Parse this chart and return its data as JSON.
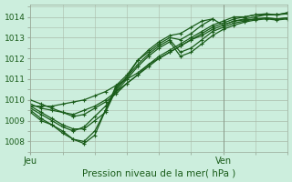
{
  "title": "Pression niveau de la mer( hPa )",
  "ylabel_ticks": [
    1008,
    1009,
    1010,
    1011,
    1012,
    1013,
    1014
  ],
  "ylim": [
    1007.6,
    1014.6
  ],
  "xlim": [
    0,
    48
  ],
  "background_color": "#cceedd",
  "grid_color": "#aabbaa",
  "line_color": "#1a5c1a",
  "marker_color": "#1a5c1a",
  "xtick_labels": [
    "Jeu",
    "Ven"
  ],
  "xtick_positions": [
    0,
    36
  ],
  "vline_x": 36,
  "series": [
    {
      "x": [
        0,
        2,
        4,
        6,
        8,
        10,
        12,
        14,
        16,
        18,
        20,
        22,
        24,
        26,
        28,
        30,
        32,
        34,
        36,
        38,
        40,
        42,
        44,
        46,
        48
      ],
      "y": [
        1009.7,
        1009.7,
        1009.7,
        1009.8,
        1009.9,
        1010.0,
        1010.2,
        1010.4,
        1010.7,
        1011.0,
        1011.3,
        1011.7,
        1012.0,
        1012.3,
        1012.6,
        1012.9,
        1013.1,
        1013.4,
        1013.6,
        1013.8,
        1013.9,
        1014.0,
        1014.1,
        1014.1,
        1014.2
      ]
    },
    {
      "x": [
        0,
        2,
        4,
        6,
        8,
        10,
        12,
        14,
        16,
        18,
        20,
        22,
        24,
        26,
        28,
        30,
        32,
        34,
        36,
        38,
        40,
        42,
        44,
        46,
        48
      ],
      "y": [
        1009.8,
        1009.6,
        1009.5,
        1009.4,
        1009.3,
        1009.5,
        1009.7,
        1010.0,
        1010.4,
        1010.8,
        1011.2,
        1011.6,
        1012.0,
        1012.3,
        1012.6,
        1012.9,
        1013.2,
        1013.5,
        1013.7,
        1013.9,
        1014.0,
        1014.1,
        1014.1,
        1014.1,
        1014.15
      ]
    },
    {
      "x": [
        0,
        2,
        4,
        6,
        8,
        10,
        12,
        14,
        16,
        18,
        20,
        22,
        24,
        26,
        28,
        30,
        32,
        34,
        36,
        38,
        40,
        42,
        44,
        46,
        48
      ],
      "y": [
        1010.0,
        1009.8,
        1009.6,
        1009.4,
        1009.2,
        1009.3,
        1009.6,
        1009.9,
        1010.3,
        1010.8,
        1011.2,
        1011.7,
        1012.1,
        1012.4,
        1012.7,
        1013.0,
        1013.3,
        1013.6,
        1013.8,
        1014.0,
        1014.0,
        1014.1,
        1014.15,
        1014.1,
        1014.2
      ]
    },
    {
      "x": [
        0,
        2,
        4,
        6,
        8,
        10,
        12,
        14,
        16,
        18,
        20,
        22,
        24,
        26,
        28,
        30,
        32,
        34,
        36,
        38,
        40,
        42,
        44,
        46,
        48
      ],
      "y": [
        1009.6,
        1009.3,
        1009.0,
        1008.7,
        1008.5,
        1008.7,
        1009.2,
        1009.7,
        1010.4,
        1011.0,
        1011.6,
        1012.1,
        1012.5,
        1012.8,
        1012.1,
        1012.3,
        1012.7,
        1013.1,
        1013.4,
        1013.6,
        1013.75,
        1013.85,
        1013.9,
        1013.85,
        1013.9
      ]
    },
    {
      "x": [
        0,
        2,
        4,
        6,
        8,
        10,
        12,
        14,
        16,
        18,
        20,
        22,
        24,
        26,
        28,
        30,
        32,
        34,
        36,
        38,
        40,
        42,
        44,
        46,
        48
      ],
      "y": [
        1009.7,
        1009.4,
        1009.1,
        1008.8,
        1008.6,
        1008.6,
        1009.0,
        1009.4,
        1010.5,
        1011.1,
        1011.7,
        1012.2,
        1012.6,
        1012.9,
        1012.3,
        1012.5,
        1012.9,
        1013.3,
        1013.5,
        1013.7,
        1013.8,
        1013.9,
        1013.95,
        1013.9,
        1013.95
      ]
    },
    {
      "x": [
        0,
        2,
        4,
        6,
        8,
        10,
        12,
        14,
        16,
        18,
        20,
        22,
        24,
        26,
        28,
        30,
        32,
        34,
        36,
        38,
        40,
        42,
        44,
        46,
        48
      ],
      "y": [
        1009.5,
        1009.1,
        1008.8,
        1008.5,
        1008.1,
        1008.0,
        1008.5,
        1009.5,
        1010.6,
        1011.1,
        1011.9,
        1012.3,
        1012.7,
        1013.0,
        1012.9,
        1013.2,
        1013.6,
        1013.9,
        1013.6,
        1013.8,
        1013.85,
        1013.9,
        1013.95,
        1013.9,
        1013.95
      ]
    },
    {
      "x": [
        0,
        2,
        4,
        6,
        8,
        10,
        12,
        14,
        16,
        18,
        20,
        22,
        24,
        26,
        28,
        30,
        32,
        34
      ],
      "y": [
        1009.4,
        1009.0,
        1008.8,
        1008.4,
        1008.1,
        1007.9,
        1008.3,
        1009.5,
        1010.7,
        1011.2,
        1011.9,
        1012.4,
        1012.8,
        1013.1,
        1013.2,
        1013.5,
        1013.8,
        1013.9
      ]
    }
  ]
}
